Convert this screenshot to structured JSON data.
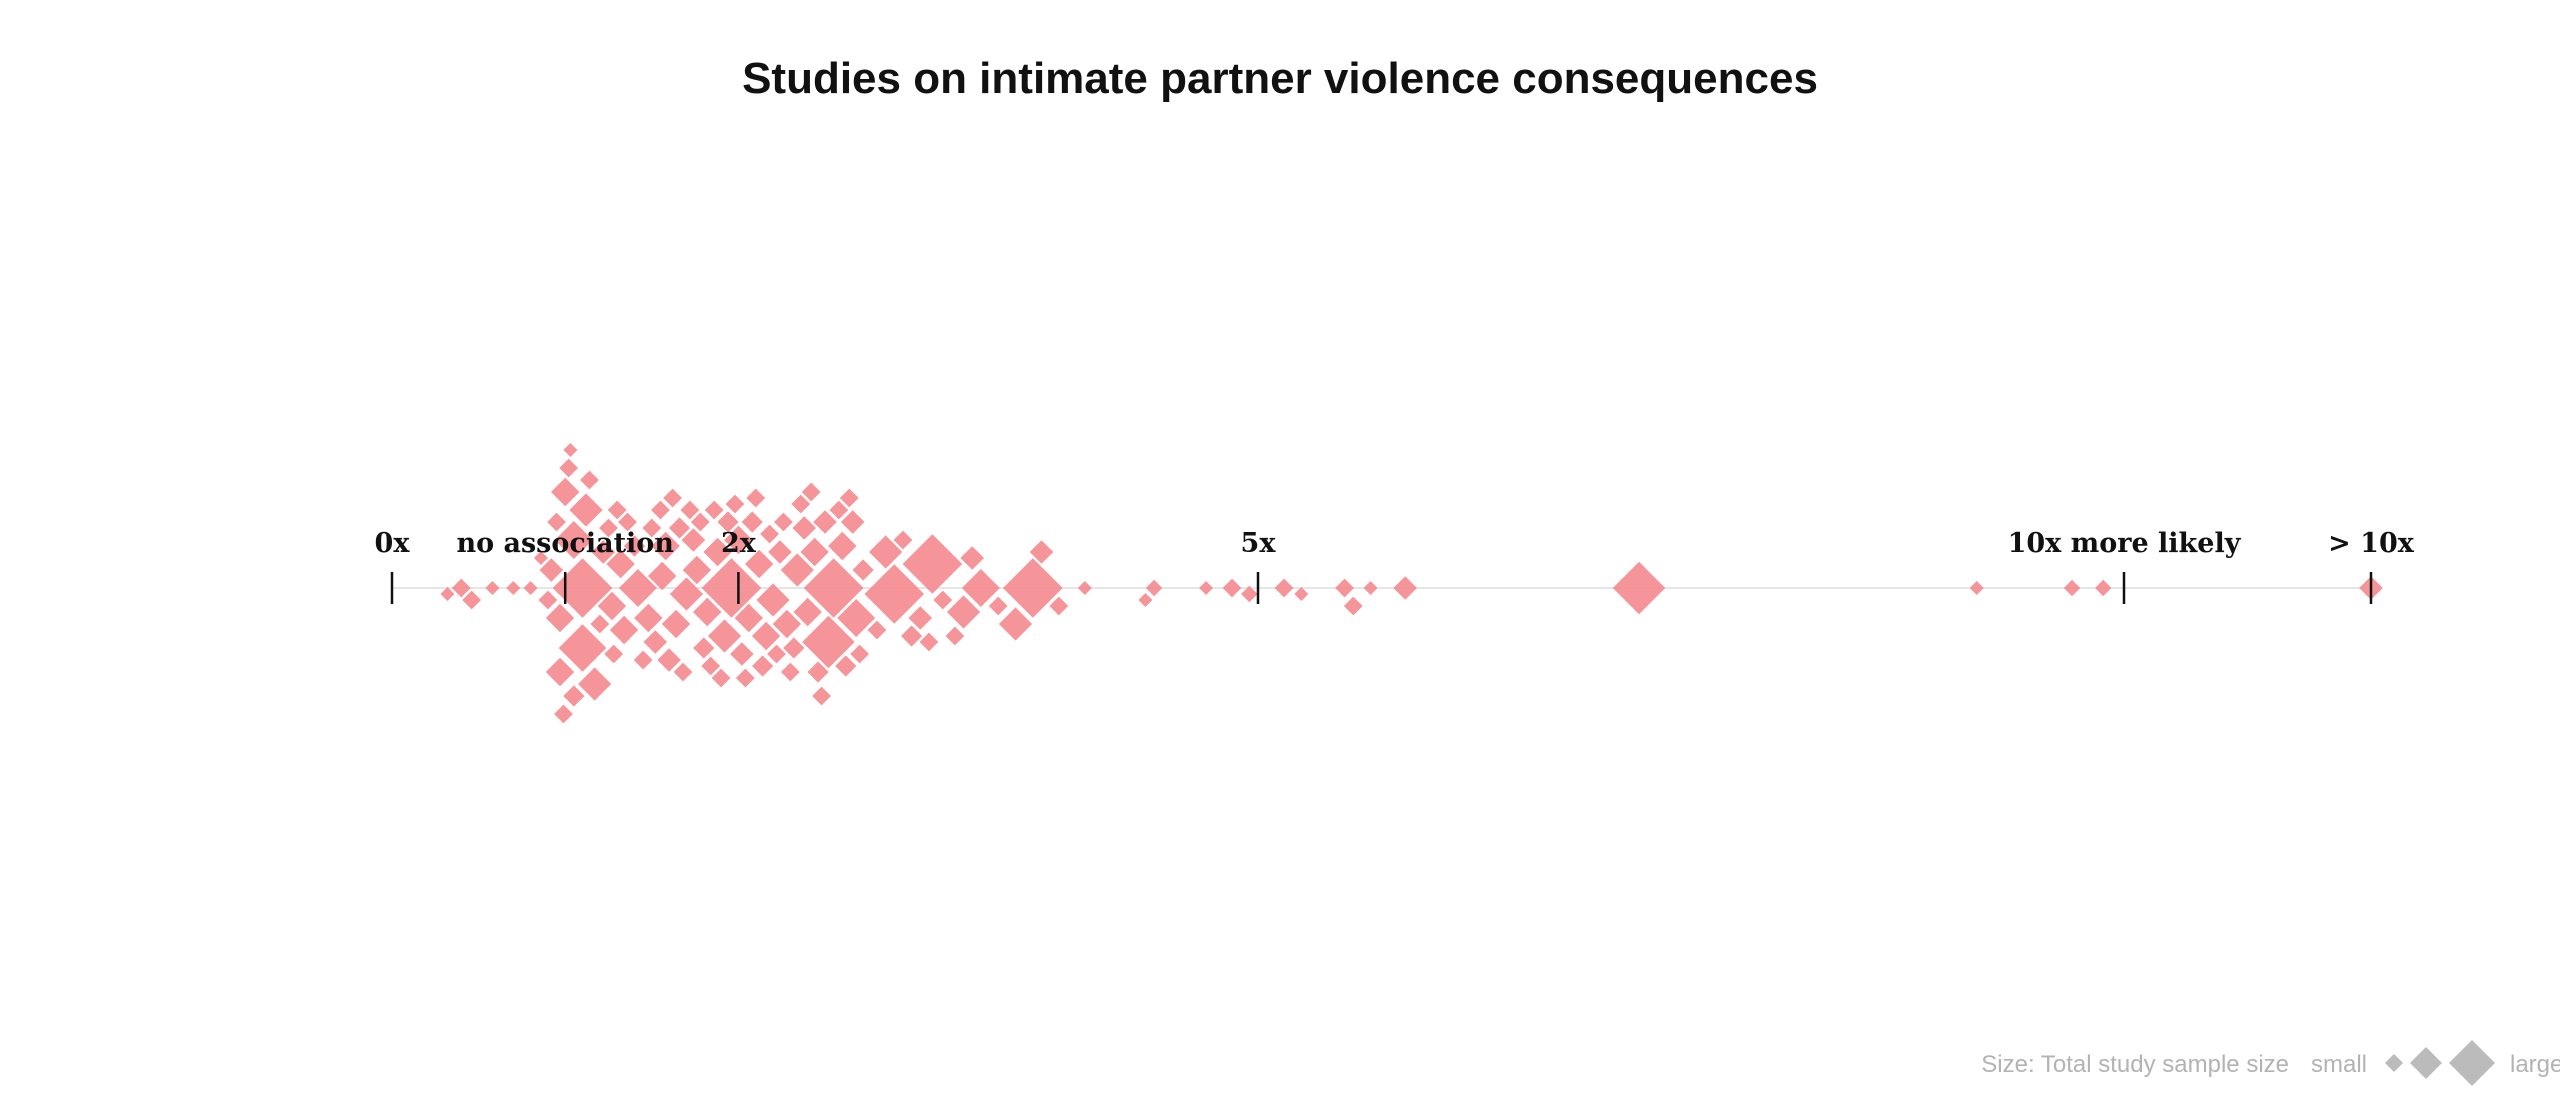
{
  "title": "Studies on intimate partner violence consequences",
  "colors": {
    "point": "#f58a8e",
    "axis": "#e6e6e6",
    "tick": "#111111",
    "legend_marker": "#bbbbbb"
  },
  "chart_data": {
    "type": "scatter",
    "title": "Studies on intimate partner violence consequences",
    "xlabel": "",
    "ylabel": "",
    "x_scale": "linear (ratio: x times as likely)",
    "xlim": [
      0,
      10
    ],
    "ticks": [
      {
        "value": 0,
        "label": "0x"
      },
      {
        "value": 1,
        "label": "no association"
      },
      {
        "value": 2,
        "label": "2x"
      },
      {
        "value": 5,
        "label": "5x"
      },
      {
        "value": 10,
        "label": "10x more likely"
      },
      {
        "value": "overflow",
        "label": "> 10x"
      }
    ],
    "points_note": "Each diamond is one study; x = ratio, size = relative total sample size (1 small – 3 large). Vertical stacking is a beeswarm layout. Points with ratio > 10 are shown at the '> 10x' tick.",
    "points": [
      {
        "x": 0.32,
        "s": 1
      },
      {
        "x": 0.4,
        "s": 1.2
      },
      {
        "x": 0.46,
        "s": 1.2
      },
      {
        "x": 0.58,
        "s": 1
      },
      {
        "x": 0.7,
        "s": 1
      },
      {
        "x": 0.8,
        "s": 1
      },
      {
        "x": 0.86,
        "s": 1
      },
      {
        "x": 0.9,
        "s": 1.2
      },
      {
        "x": 0.92,
        "s": 1.4
      },
      {
        "x": 0.95,
        "s": 1.2
      },
      {
        "x": 0.97,
        "s": 1.6
      },
      {
        "x": 0.97,
        "s": 1.6
      },
      {
        "x": 0.99,
        "s": 1.2
      },
      {
        "x": 1.0,
        "s": 1.6
      },
      {
        "x": 1.02,
        "s": 1.2
      },
      {
        "x": 1.03,
        "s": 1
      },
      {
        "x": 1.05,
        "s": 1.3
      },
      {
        "x": 1.1,
        "s": 2.9
      },
      {
        "x": 1.1,
        "s": 2.4
      },
      {
        "x": 1.05,
        "s": 2.0
      },
      {
        "x": 1.12,
        "s": 1.8
      },
      {
        "x": 1.14,
        "s": 1.2
      },
      {
        "x": 1.17,
        "s": 1.8
      },
      {
        "x": 1.2,
        "s": 1.2
      },
      {
        "x": 1.22,
        "s": 1.4
      },
      {
        "x": 1.25,
        "s": 1.2
      },
      {
        "x": 1.27,
        "s": 1.6
      },
      {
        "x": 1.28,
        "s": 1.2
      },
      {
        "x": 1.3,
        "s": 1.2
      },
      {
        "x": 1.32,
        "s": 1.6
      },
      {
        "x": 1.34,
        "s": 1.6
      },
      {
        "x": 1.36,
        "s": 1.2
      },
      {
        "x": 1.4,
        "s": 1.3
      },
      {
        "x": 1.42,
        "s": 2.0
      },
      {
        "x": 1.45,
        "s": 1.2
      },
      {
        "x": 1.48,
        "s": 1.6
      },
      {
        "x": 1.5,
        "s": 1.2
      },
      {
        "x": 1.52,
        "s": 1.4
      },
      {
        "x": 1.55,
        "s": 1.2
      },
      {
        "x": 1.56,
        "s": 1.6
      },
      {
        "x": 1.58,
        "s": 1.6
      },
      {
        "x": 1.6,
        "s": 1.4
      },
      {
        "x": 1.62,
        "s": 1.2
      },
      {
        "x": 1.64,
        "s": 1.6
      },
      {
        "x": 1.66,
        "s": 1.3
      },
      {
        "x": 1.68,
        "s": 1.2
      },
      {
        "x": 1.7,
        "s": 1.8
      },
      {
        "x": 1.72,
        "s": 1.2
      },
      {
        "x": 1.74,
        "s": 1.4
      },
      {
        "x": 1.76,
        "s": 1.6
      },
      {
        "x": 1.78,
        "s": 1.2
      },
      {
        "x": 1.8,
        "s": 1.3
      },
      {
        "x": 1.82,
        "s": 1.6
      },
      {
        "x": 1.84,
        "s": 1.2
      },
      {
        "x": 1.86,
        "s": 1.2
      },
      {
        "x": 1.88,
        "s": 1.6
      },
      {
        "x": 1.9,
        "s": 1.2
      },
      {
        "x": 1.92,
        "s": 1.8
      },
      {
        "x": 1.94,
        "s": 1.3
      },
      {
        "x": 1.96,
        "s": 2.9
      },
      {
        "x": 1.98,
        "s": 1.2
      },
      {
        "x": 2.0,
        "s": 1.6
      },
      {
        "x": 2.02,
        "s": 1.4
      },
      {
        "x": 2.04,
        "s": 1.2
      },
      {
        "x": 2.06,
        "s": 1.6
      },
      {
        "x": 2.08,
        "s": 1.3
      },
      {
        "x": 2.1,
        "s": 1.2
      },
      {
        "x": 2.12,
        "s": 1.6
      },
      {
        "x": 2.14,
        "s": 1.3
      },
      {
        "x": 2.16,
        "s": 1.6
      },
      {
        "x": 2.18,
        "s": 1.2
      },
      {
        "x": 2.2,
        "s": 1.8
      },
      {
        "x": 2.22,
        "s": 1.2
      },
      {
        "x": 2.24,
        "s": 1.4
      },
      {
        "x": 2.26,
        "s": 1.2
      },
      {
        "x": 2.28,
        "s": 1.6
      },
      {
        "x": 2.3,
        "s": 1.2
      },
      {
        "x": 2.32,
        "s": 1.3
      },
      {
        "x": 2.34,
        "s": 1.8
      },
      {
        "x": 2.36,
        "s": 1.2
      },
      {
        "x": 2.38,
        "s": 1.4
      },
      {
        "x": 2.4,
        "s": 1.6
      },
      {
        "x": 2.42,
        "s": 1.2
      },
      {
        "x": 2.44,
        "s": 1.6
      },
      {
        "x": 2.46,
        "s": 1.3
      },
      {
        "x": 2.48,
        "s": 1.2
      },
      {
        "x": 2.5,
        "s": 1.4
      },
      {
        "x": 2.52,
        "s": 2.6
      },
      {
        "x": 2.55,
        "s": 2.9
      },
      {
        "x": 2.58,
        "s": 1.2
      },
      {
        "x": 2.6,
        "s": 1.6
      },
      {
        "x": 2.62,
        "s": 1.3
      },
      {
        "x": 2.64,
        "s": 1.2
      },
      {
        "x": 2.66,
        "s": 1.4
      },
      {
        "x": 2.68,
        "s": 2.0
      },
      {
        "x": 2.7,
        "s": 1.2
      },
      {
        "x": 2.72,
        "s": 1.3
      },
      {
        "x": 2.8,
        "s": 1.2
      },
      {
        "x": 2.85,
        "s": 1.8
      },
      {
        "x": 2.9,
        "s": 2.9
      },
      {
        "x": 2.95,
        "s": 1.2
      },
      {
        "x": 3.0,
        "s": 1.3
      },
      {
        "x": 3.05,
        "s": 1.4
      },
      {
        "x": 3.1,
        "s": 1.2
      },
      {
        "x": 3.12,
        "s": 2.9
      },
      {
        "x": 3.18,
        "s": 1.2
      },
      {
        "x": 3.25,
        "s": 1.2
      },
      {
        "x": 3.3,
        "s": 1.8
      },
      {
        "x": 3.35,
        "s": 1.4
      },
      {
        "x": 3.4,
        "s": 2.0
      },
      {
        "x": 3.5,
        "s": 1.2
      },
      {
        "x": 3.6,
        "s": 1.8
      },
      {
        "x": 3.7,
        "s": 2.9
      },
      {
        "x": 3.75,
        "s": 1.4
      },
      {
        "x": 3.85,
        "s": 1.2
      },
      {
        "x": 4.0,
        "s": 1
      },
      {
        "x": 4.35,
        "s": 1
      },
      {
        "x": 4.4,
        "s": 1.1
      },
      {
        "x": 4.7,
        "s": 1
      },
      {
        "x": 4.85,
        "s": 1.2
      },
      {
        "x": 4.95,
        "s": 1.1
      },
      {
        "x": 5.15,
        "s": 1.2
      },
      {
        "x": 5.25,
        "s": 1
      },
      {
        "x": 5.5,
        "s": 1.2
      },
      {
        "x": 5.55,
        "s": 1.2
      },
      {
        "x": 5.65,
        "s": 1
      },
      {
        "x": 5.85,
        "s": 1.4
      },
      {
        "x": 7.2,
        "s": 2.6
      },
      {
        "x": 9.15,
        "s": 1
      },
      {
        "x": 9.7,
        "s": 1.1
      },
      {
        "x": 9.88,
        "s": 1.1
      },
      {
        "x": ">10",
        "s": 1.4
      }
    ]
  },
  "legend": {
    "caption": "Size: Total study sample size",
    "small_label": "small",
    "large_label": "large"
  }
}
